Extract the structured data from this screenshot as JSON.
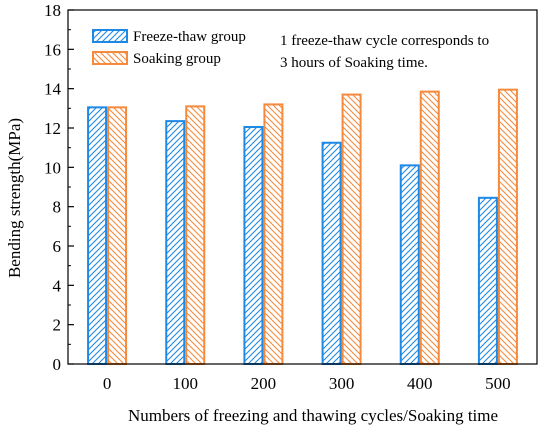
{
  "chart_data": {
    "type": "bar",
    "categories": [
      "0",
      "100",
      "200",
      "300",
      "400",
      "500"
    ],
    "series": [
      {
        "name": "Freeze-thaw group",
        "values": [
          13.05,
          12.35,
          12.05,
          11.25,
          10.1,
          8.45
        ],
        "color": "#1E88E5"
      },
      {
        "name": "Soaking group",
        "values": [
          13.05,
          13.1,
          13.2,
          13.7,
          13.85,
          13.95
        ],
        "color": "#F58A3C"
      }
    ],
    "xlabel": "Numbers of freezing and thawing cycles/Soaking time",
    "ylabel": "Bending strength(MPa)",
    "ylim": [
      0,
      18
    ],
    "yticks": [
      "0",
      "2",
      "4",
      "6",
      "8",
      "10",
      "12",
      "14",
      "16",
      "18"
    ],
    "grid": false,
    "legend_position": "top-left",
    "bar_fill": "diagonal-hatch",
    "annotation": [
      "1 freeze-thaw cycle corresponds to",
      "3 hours of Soaking time."
    ]
  }
}
